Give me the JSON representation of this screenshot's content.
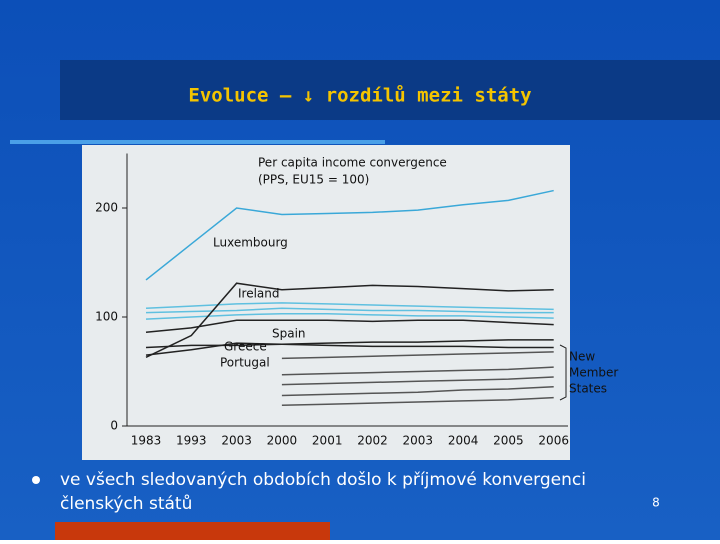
{
  "slide": {
    "title": "Evoluce – ↓ rozdílů mezi státy",
    "bullet": "ve všech sledovaných obdobích došlo k příjmové konvergenci",
    "bullet_cont": "členských států",
    "page_number": "8"
  },
  "chart_data": {
    "type": "line",
    "title": "Per capita income convergence",
    "subtitle": "(PPS, EU15 = 100)",
    "categories": [
      "1983",
      "1993",
      "2003",
      "2000",
      "2001",
      "2002",
      "2003",
      "2004",
      "2005",
      "2006"
    ],
    "ylim": [
      0,
      250
    ],
    "yticks": [
      0,
      100,
      200
    ],
    "annotation_lines": [
      "New",
      "Member",
      "States"
    ],
    "series": [
      {
        "name": "Luxembourg",
        "color": "#3aa8d8",
        "values": [
          134,
          167,
          200,
          194,
          195,
          196,
          198,
          203,
          207,
          216
        ]
      },
      {
        "color": "#5fc0e0",
        "values": [
          108,
          110,
          112,
          113,
          112,
          111,
          110,
          109,
          108,
          107
        ]
      },
      {
        "color": "#5fc0e0",
        "values": [
          104,
          105,
          106,
          108,
          107,
          106,
          106,
          105,
          104,
          104
        ]
      },
      {
        "color": "#5fc0e0",
        "values": [
          98,
          100,
          102,
          103,
          103,
          102,
          101,
          101,
          100,
          99
        ]
      },
      {
        "name": "Ireland",
        "color": "#222222",
        "values": [
          63,
          83,
          131,
          125,
          127,
          129,
          128,
          126,
          124,
          125
        ]
      },
      {
        "name": "Spain",
        "color": "#222222",
        "values": [
          86,
          90,
          97,
          97,
          97,
          96,
          97,
          97,
          95,
          93
        ]
      },
      {
        "name": "Greece",
        "color": "#222222",
        "values": [
          72,
          74,
          74,
          75,
          76,
          77,
          77,
          78,
          79,
          79
        ]
      },
      {
        "name": "Portugal",
        "color": "#222222",
        "values": [
          65,
          70,
          76,
          75,
          74,
          73,
          73,
          73,
          72,
          72
        ]
      },
      {
        "color": "#555555",
        "values": [
          null,
          null,
          null,
          62,
          63,
          64,
          65,
          66,
          67,
          68
        ]
      },
      {
        "color": "#555555",
        "values": [
          null,
          null,
          null,
          47,
          48,
          49,
          50,
          51,
          52,
          54
        ]
      },
      {
        "color": "#555555",
        "values": [
          null,
          null,
          null,
          38,
          39,
          40,
          41,
          42,
          43,
          45
        ]
      },
      {
        "color": "#555555",
        "values": [
          null,
          null,
          null,
          28,
          29,
          30,
          31,
          33,
          34,
          36
        ]
      },
      {
        "color": "#555555",
        "values": [
          null,
          null,
          null,
          19,
          20,
          21,
          22,
          23,
          24,
          26
        ]
      }
    ]
  }
}
